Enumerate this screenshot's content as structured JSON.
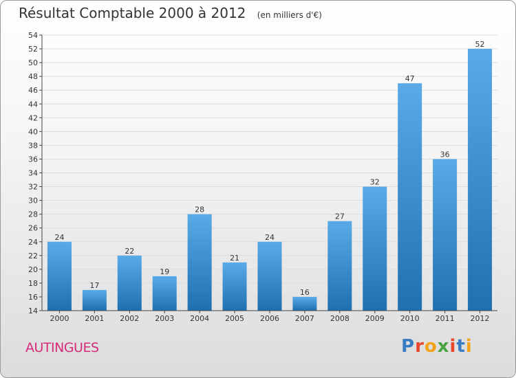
{
  "header": {
    "title": "Résultat Comptable 2000 à 2012",
    "unit": "(en milliers d'€)"
  },
  "footer": {
    "commune": "AUTINGUES",
    "logo": "Proxiti",
    "logo_colors": [
      "#3a7cc4",
      "#e8452c",
      "#f2a31b",
      "#4aa342",
      "#e8452c",
      "#3a7cc4",
      "#f2a31b"
    ]
  },
  "colors": {
    "bar_light": "#5aaae8",
    "bar_dark": "#1f70b0",
    "axis": "#444444",
    "grid": "#dddddd",
    "text": "#333333"
  },
  "chart_data": {
    "type": "bar",
    "title": "Résultat Comptable 2000 à 2012",
    "xlabel": "",
    "ylabel": "",
    "categories": [
      "2000",
      "2001",
      "2002",
      "2003",
      "2004",
      "2005",
      "2006",
      "2007",
      "2008",
      "2009",
      "2010",
      "2011",
      "2012"
    ],
    "values": [
      24,
      17,
      22,
      19,
      28,
      21,
      24,
      16,
      27,
      32,
      47,
      36,
      52
    ],
    "ylim": [
      14,
      54
    ],
    "yticks": [
      14,
      16,
      18,
      20,
      22,
      24,
      26,
      28,
      30,
      32,
      34,
      36,
      38,
      40,
      42,
      44,
      46,
      48,
      50,
      52,
      54
    ],
    "grid": true
  }
}
